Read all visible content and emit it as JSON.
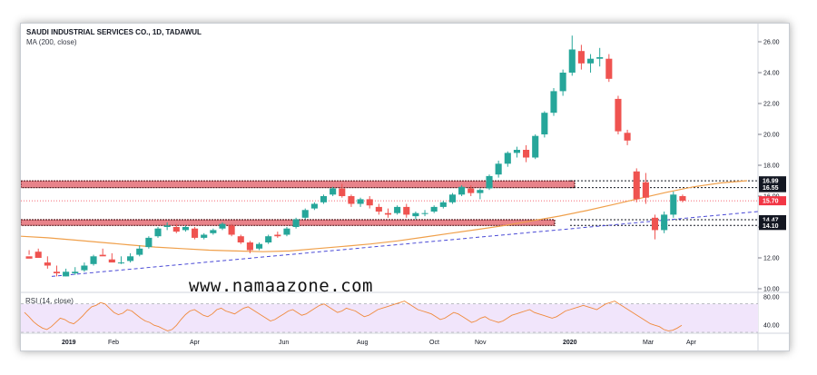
{
  "header": {
    "title": "SAUDI INDUSTRIAL SERVICES CO., 1D, TADAWUL",
    "indicator": "MA (200, close)"
  },
  "rsi": {
    "label": "RSI (14, close)",
    "ticks": [
      "80.00",
      "40.00"
    ]
  },
  "watermark": "www.namaazone.com",
  "colors": {
    "up": "#26a69a",
    "down": "#ef5350",
    "zone_fill": "#e8838a",
    "ma": "#f0a04b",
    "trendline": "#4a4ad6",
    "rsi_line": "#f08a3c",
    "rsi_band": "#f1e5fb",
    "price_tag": "#f23645",
    "level_tag": "#131722"
  },
  "chart_data": {
    "type": "candlestick",
    "title": "SAUDI INDUSTRIAL SERVICES CO., 1D, TADAWUL",
    "x_ticks": [
      "2019",
      "Feb",
      "Apr",
      "Jun",
      "Aug",
      "Oct",
      "Nov",
      "2020",
      "Mar",
      "Apr"
    ],
    "y_ticks": [
      "26.00",
      "24.00",
      "22.00",
      "20.00",
      "18.00",
      "16.00",
      "14.00",
      "12.00",
      "10.00"
    ],
    "ylim": [
      10,
      26.5
    ],
    "last_price": "15.70",
    "levels": [
      "16.99",
      "16.55",
      "14.47",
      "14.10"
    ],
    "zones": [
      {
        "from": 16.55,
        "to": 16.99
      },
      {
        "from": 14.1,
        "to": 14.47
      }
    ],
    "ma200_label": "MA (200, close)",
    "candles_weekly": [
      [
        12.1,
        12.5,
        12.2,
        11.95
      ],
      [
        12.4,
        12.6,
        12.0,
        12.0
      ],
      [
        11.7,
        12.1,
        11.3,
        11.5
      ],
      [
        11.1,
        11.5,
        10.8,
        11.0
      ],
      [
        10.8,
        11.3,
        10.8,
        11.1
      ],
      [
        11.0,
        11.4,
        10.9,
        11.1
      ],
      [
        11.2,
        11.7,
        11.1,
        11.5
      ],
      [
        11.6,
        12.2,
        11.5,
        12.1
      ],
      [
        12.2,
        12.6,
        12.2,
        12.1
      ],
      [
        11.9,
        12.3,
        11.8,
        11.7
      ],
      [
        11.7,
        12.1,
        11.6,
        11.7
      ],
      [
        11.8,
        12.3,
        11.7,
        12.1
      ],
      [
        12.2,
        12.8,
        12.1,
        12.6
      ],
      [
        12.7,
        13.4,
        12.6,
        13.3
      ],
      [
        13.4,
        14.0,
        13.3,
        13.9
      ],
      [
        14.0,
        14.3,
        13.8,
        14.1
      ],
      [
        14.0,
        14.2,
        13.6,
        13.7
      ],
      [
        13.8,
        14.1,
        13.7,
        14.0
      ],
      [
        13.9,
        14.0,
        13.2,
        13.3
      ],
      [
        13.3,
        13.6,
        13.2,
        13.5
      ],
      [
        13.6,
        13.9,
        13.5,
        13.8
      ],
      [
        13.9,
        14.3,
        13.8,
        14.2
      ],
      [
        14.1,
        14.2,
        13.4,
        13.5
      ],
      [
        13.4,
        13.5,
        12.9,
        13.0
      ],
      [
        13.0,
        13.1,
        12.3,
        12.5
      ],
      [
        12.6,
        13.0,
        12.5,
        12.9
      ],
      [
        13.0,
        13.5,
        12.9,
        13.4
      ],
      [
        13.5,
        13.7,
        13.3,
        13.4
      ],
      [
        13.5,
        14.0,
        13.4,
        13.9
      ],
      [
        14.0,
        14.6,
        13.9,
        14.5
      ],
      [
        14.6,
        15.2,
        14.5,
        15.1
      ],
      [
        15.2,
        15.6,
        15.1,
        15.5
      ],
      [
        15.6,
        16.1,
        15.5,
        16.0
      ],
      [
        16.1,
        16.6,
        16.0,
        16.5
      ],
      [
        16.5,
        16.8,
        15.9,
        16.0
      ],
      [
        16.0,
        16.1,
        15.3,
        15.5
      ],
      [
        15.5,
        15.9,
        15.3,
        15.8
      ],
      [
        15.8,
        16.0,
        15.2,
        15.4
      ],
      [
        15.3,
        15.5,
        14.8,
        15.0
      ],
      [
        14.9,
        15.2,
        14.6,
        14.8
      ],
      [
        14.9,
        15.4,
        14.8,
        15.3
      ],
      [
        15.3,
        15.5,
        14.6,
        14.8
      ],
      [
        14.7,
        15.0,
        14.5,
        14.9
      ],
      [
        14.9,
        15.1,
        14.7,
        14.9
      ],
      [
        15.0,
        15.4,
        14.9,
        15.3
      ],
      [
        15.3,
        15.7,
        15.2,
        15.6
      ],
      [
        15.6,
        16.2,
        15.5,
        16.1
      ],
      [
        16.1,
        16.7,
        16.0,
        16.6
      ],
      [
        16.5,
        16.7,
        16.0,
        16.2
      ],
      [
        16.2,
        16.5,
        15.8,
        16.4
      ],
      [
        16.5,
        17.4,
        16.4,
        17.3
      ],
      [
        17.4,
        18.3,
        17.2,
        18.1
      ],
      [
        18.1,
        18.9,
        17.9,
        18.8
      ],
      [
        18.8,
        19.2,
        18.5,
        19.0
      ],
      [
        19.0,
        19.3,
        18.2,
        18.5
      ],
      [
        18.5,
        20.0,
        18.4,
        19.9
      ],
      [
        20.0,
        21.5,
        19.8,
        21.4
      ],
      [
        21.4,
        23.0,
        21.2,
        22.8
      ],
      [
        22.8,
        24.2,
        22.5,
        24.0
      ],
      [
        24.0,
        26.4,
        23.8,
        25.5
      ],
      [
        25.4,
        25.8,
        24.2,
        24.6
      ],
      [
        24.6,
        25.2,
        24.0,
        24.9
      ],
      [
        24.9,
        25.6,
        24.4,
        25.0
      ],
      [
        24.9,
        25.2,
        23.4,
        23.6
      ],
      [
        22.3,
        22.5,
        20.0,
        20.2
      ],
      [
        20.1,
        20.3,
        19.3,
        19.6
      ],
      [
        17.6,
        17.8,
        15.6,
        15.8
      ],
      [
        16.9,
        17.5,
        15.5,
        15.9
      ],
      [
        14.6,
        14.8,
        13.2,
        13.8
      ],
      [
        13.8,
        15.0,
        13.6,
        14.8
      ],
      [
        14.8,
        16.3,
        14.6,
        16.1
      ],
      [
        16.0,
        16.1,
        15.6,
        15.7
      ]
    ],
    "rsi_range": [
      30,
      85
    ],
    "rsi_band": [
      30,
      70
    ],
    "rsi_values": [
      58,
      52,
      45,
      40,
      36,
      34,
      38,
      44,
      50,
      48,
      44,
      42,
      47,
      53,
      60,
      66,
      68,
      72,
      70,
      64,
      58,
      55,
      57,
      62,
      60,
      55,
      50,
      46,
      44,
      40,
      38,
      35,
      32,
      34,
      40,
      48,
      55,
      60,
      62,
      58,
      54,
      52,
      56,
      62,
      64,
      60,
      58,
      56,
      60,
      64,
      66,
      62,
      58,
      54,
      50,
      46,
      48,
      52,
      56,
      60,
      62,
      58,
      54,
      56,
      60,
      64,
      68,
      70,
      66,
      62,
      58,
      60,
      64,
      62,
      60,
      56,
      52,
      54,
      58,
      62,
      64,
      66,
      68,
      70,
      72,
      74,
      70,
      66,
      62,
      60,
      58,
      56,
      52,
      48,
      50,
      54,
      58,
      56,
      52,
      48,
      44,
      46,
      50,
      52,
      48,
      46,
      44,
      46,
      50,
      54,
      56,
      58,
      60,
      62,
      58,
      56,
      54,
      52,
      50,
      52,
      56,
      60,
      62,
      64,
      66,
      68,
      66,
      64,
      62,
      66,
      70,
      72,
      74,
      70,
      66,
      62,
      58,
      54,
      50,
      46,
      42,
      40,
      38,
      34,
      32,
      33,
      36,
      40
    ],
    "ma200": [
      13.4,
      13.3,
      13.15,
      13.0,
      12.85,
      12.7,
      12.6,
      12.5,
      12.45,
      12.4,
      12.45,
      12.6,
      12.75,
      12.9,
      13.1,
      13.35,
      13.6,
      13.85,
      14.1,
      14.4,
      14.7,
      15.05,
      15.45,
      15.85,
      16.25,
      16.6,
      16.85,
      17.0
    ]
  }
}
